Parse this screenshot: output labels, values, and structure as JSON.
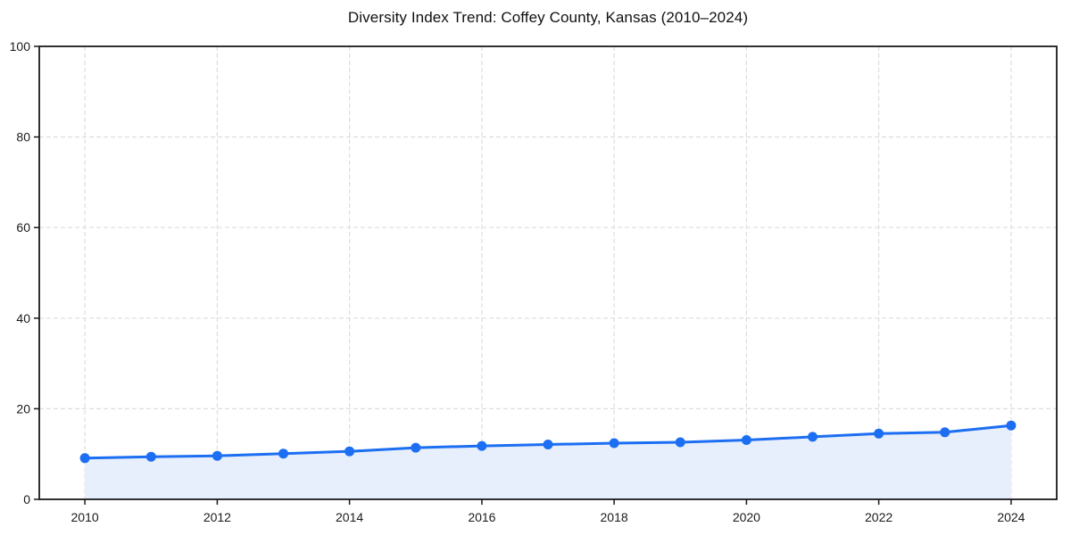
{
  "chart_data": {
    "type": "area",
    "title": "Diversity Index Trend: Coffey County, Kansas (2010–2024)",
    "x": [
      2010,
      2011,
      2012,
      2013,
      2014,
      2015,
      2016,
      2017,
      2018,
      2019,
      2020,
      2021,
      2022,
      2023,
      2024
    ],
    "series": [
      {
        "name": "Diversity Index",
        "values": [
          9.1,
          9.4,
          9.6,
          10.1,
          10.6,
          11.4,
          11.8,
          12.1,
          12.4,
          12.6,
          13.1,
          13.8,
          14.5,
          14.8,
          16.3
        ]
      }
    ],
    "xlabel": "",
    "ylabel": "",
    "xlim": [
      2009.31,
      2024.69
    ],
    "ylim": [
      0,
      100
    ],
    "xticks": [
      2010,
      2012,
      2014,
      2016,
      2018,
      2020,
      2022,
      2024
    ],
    "yticks": [
      0,
      20,
      40,
      60,
      80,
      100
    ],
    "grid": true,
    "grid_style": "dashed",
    "legend": false,
    "marker": "circle",
    "colors": {
      "line": "#1c6ef2",
      "marker": "#1c6ef2",
      "fill": "#e8effc",
      "grid": "#dedede",
      "axis": "#1a1a1a",
      "tick_label": "#1a1a1a",
      "title": "#111111",
      "background": "#ffffff"
    }
  }
}
